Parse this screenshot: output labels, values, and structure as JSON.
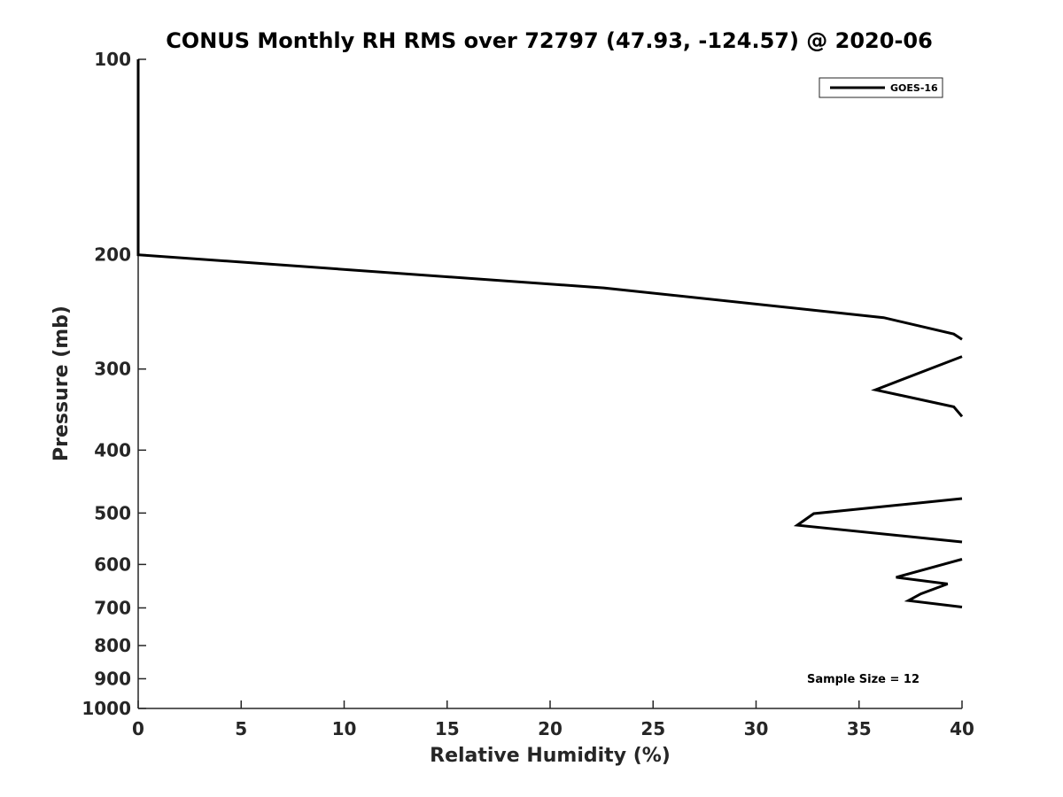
{
  "chart_data": {
    "type": "line",
    "title": "CONUS Monthly RH RMS over 72797 (47.93, -124.57) @ 2020-06",
    "xlabel": "Relative Humidity (%)",
    "ylabel": "Pressure (mb)",
    "xlim": [
      0,
      40
    ],
    "ylim": [
      100,
      1000
    ],
    "y_scale": "log",
    "y_reversed": true,
    "x_ticks": [
      "0",
      "5",
      "10",
      "15",
      "20",
      "25",
      "30",
      "35",
      "40"
    ],
    "y_ticks": [
      "100",
      "200",
      "300",
      "400",
      "500",
      "600",
      "700",
      "800",
      "900",
      "1000"
    ],
    "grid": false,
    "legend_position": "top-right",
    "annotation": "Sample Size = 12",
    "series": [
      {
        "name": "GOES-16",
        "color": "#000000",
        "points": [
          [
            0.0,
            100
          ],
          [
            0.0,
            200
          ],
          [
            22.6,
            225
          ],
          [
            36.2,
            250
          ],
          [
            39.6,
            265
          ],
          [
            40.0,
            270
          ],
          null,
          [
            40.0,
            287
          ],
          [
            35.8,
            323
          ],
          [
            39.6,
            343
          ],
          [
            40.0,
            355
          ],
          null,
          [
            40.0,
            475
          ],
          [
            38.0,
            482
          ],
          [
            32.8,
            501
          ],
          [
            32.0,
            522
          ],
          [
            40.0,
            554
          ],
          null,
          [
            40.0,
            589
          ],
          [
            36.8,
            628
          ],
          [
            39.3,
            643
          ],
          [
            38.0,
            666
          ],
          [
            37.4,
            682
          ],
          [
            40.0,
            698
          ]
        ]
      }
    ]
  }
}
